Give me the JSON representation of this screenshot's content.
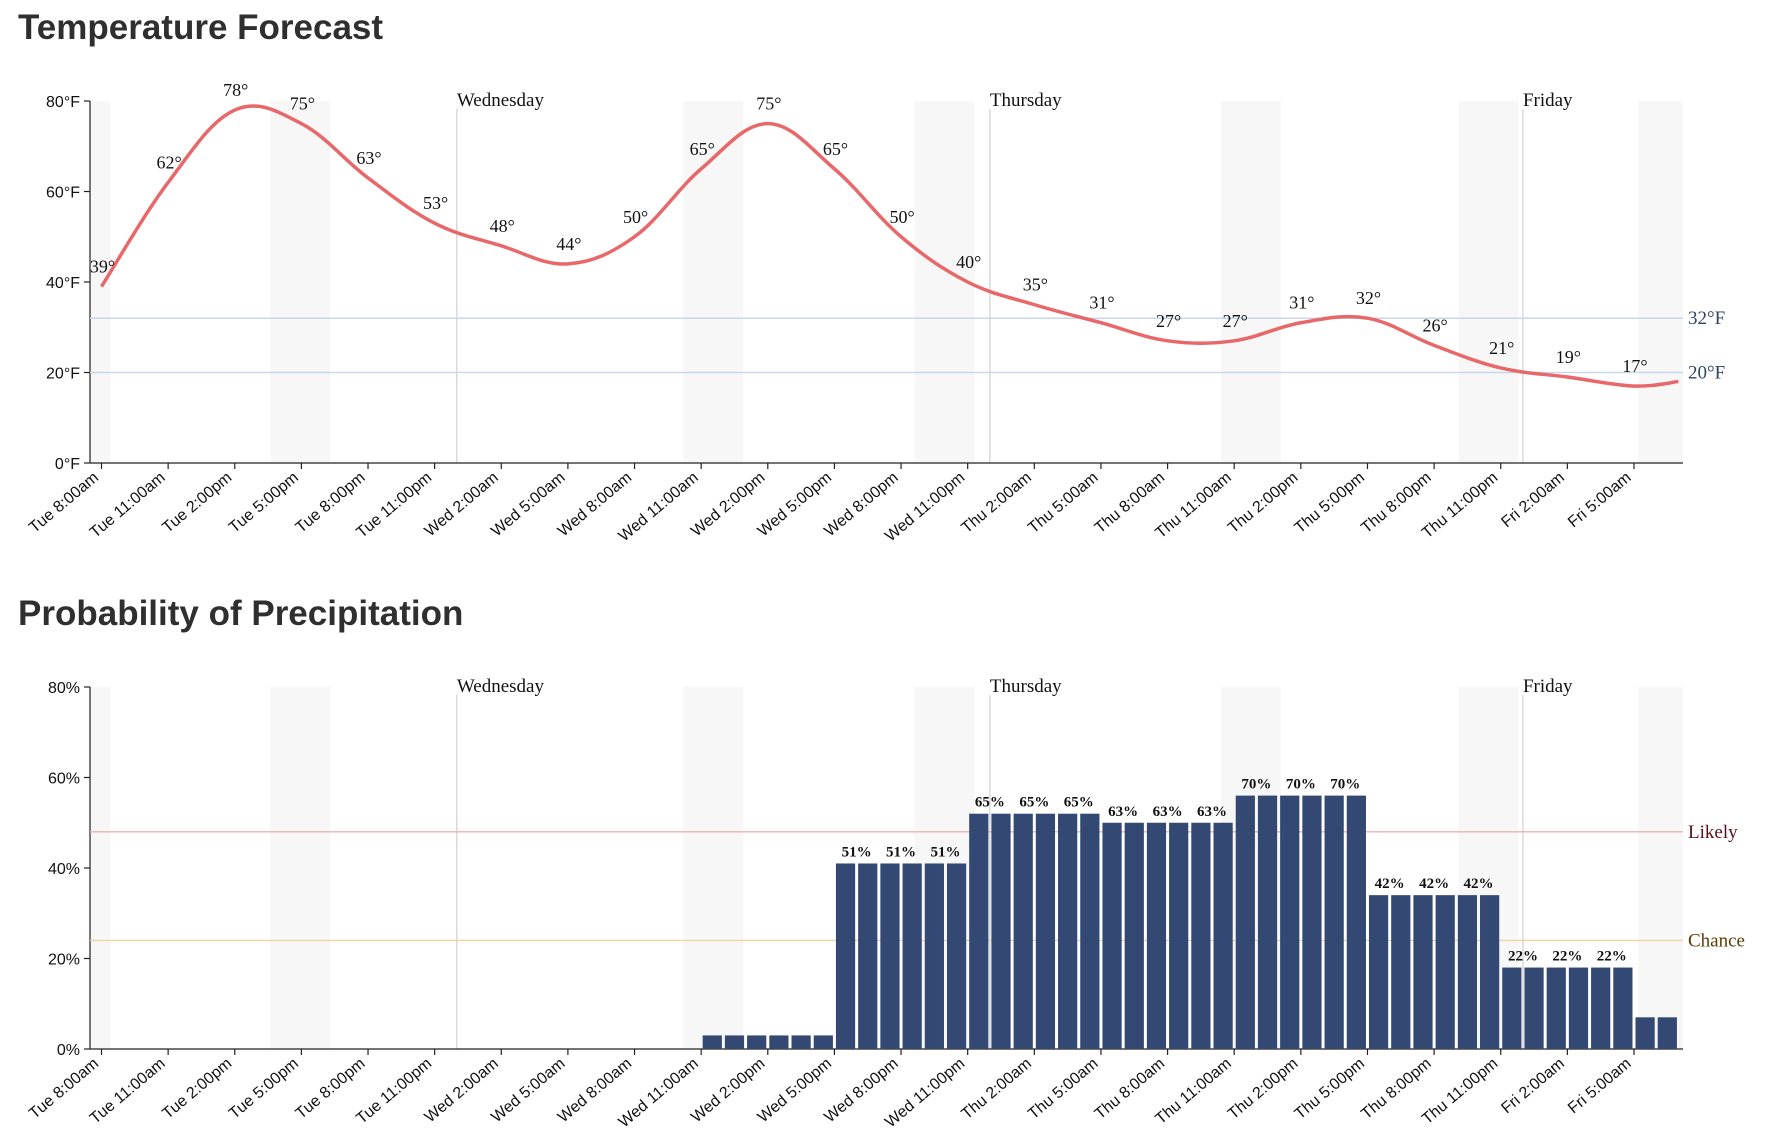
{
  "temperature_panel": {
    "title": "Temperature Forecast"
  },
  "precipitation_panel": {
    "title": "Probability of Precipitation"
  },
  "x_tick_labels": [
    "Tue 8:00am",
    "Tue 11:00am",
    "Tue 2:00pm",
    "Tue 5:00pm",
    "Tue 8:00pm",
    "Tue 11:00pm",
    "Wed 2:00am",
    "Wed 5:00am",
    "Wed 8:00am",
    "Wed 11:00am",
    "Wed 2:00pm",
    "Wed 5:00pm",
    "Wed 8:00pm",
    "Wed 11:00pm",
    "Thu 2:00am",
    "Thu 5:00am",
    "Thu 8:00am",
    "Thu 11:00am",
    "Thu 2:00pm",
    "Thu 5:00pm",
    "Thu 8:00pm",
    "Thu 11:00pm",
    "Fri 2:00am",
    "Fri 5:00am"
  ],
  "day_labels": [
    {
      "label": "Wednesday",
      "time": "Wed 12:00am"
    },
    {
      "label": "Thursday",
      "time": "Thu 12:00am"
    },
    {
      "label": "Friday",
      "time": "Fri 12:00am"
    }
  ],
  "colors": {
    "temperature_line": "#e8686a",
    "precip_bars": "#334872",
    "freezing_line": "#c9d7ea",
    "likely_line": "#f1b0b0",
    "chance_line": "#f2d29d",
    "likely_text": "#5a0f14",
    "chance_text": "#5a3b00",
    "ref_text": "#31445f",
    "night_band": "#f7f7f7",
    "day_divider": "#cfcfcf"
  },
  "chart_data": [
    {
      "type": "line",
      "title": "Temperature Forecast",
      "x_unit": "hours since Tue 8:00am",
      "ylim": [
        0,
        80
      ],
      "y_ticks": [
        "0°F",
        "20°F",
        "40°F",
        "60°F",
        "80°F"
      ],
      "reference_lines": [
        {
          "value": 32,
          "label": "32°F"
        },
        {
          "value": 20,
          "label": "20°F"
        }
      ],
      "series": [
        {
          "values": [
            {
              "x": "Tue 8:00am",
              "y": 39
            },
            {
              "x": "Tue 11:00am",
              "y": 62
            },
            {
              "x": "Tue 2:00pm",
              "y": 78
            },
            {
              "x": "Tue 5:00pm",
              "y": 75
            },
            {
              "x": "Tue 8:00pm",
              "y": 63
            },
            {
              "x": "Tue 11:00pm",
              "y": 53
            },
            {
              "x": "Wed 2:00am",
              "y": 48
            },
            {
              "x": "Wed 5:00am",
              "y": 44
            },
            {
              "x": "Wed 8:00am",
              "y": 50
            },
            {
              "x": "Wed 11:00am",
              "y": 65
            },
            {
              "x": "Wed 2:00pm",
              "y": 75
            },
            {
              "x": "Wed 5:00pm",
              "y": 65
            },
            {
              "x": "Wed 8:00pm",
              "y": 50
            },
            {
              "x": "Wed 11:00pm",
              "y": 40
            },
            {
              "x": "Thu 2:00am",
              "y": 35
            },
            {
              "x": "Thu 5:00am",
              "y": 31
            },
            {
              "x": "Thu 8:00am",
              "y": 27
            },
            {
              "x": "Thu 11:00am",
              "y": 27
            },
            {
              "x": "Thu 2:00pm",
              "y": 31
            },
            {
              "x": "Thu 5:00pm",
              "y": 32
            },
            {
              "x": "Thu 8:00pm",
              "y": 26
            },
            {
              "x": "Thu 11:00pm",
              "y": 21
            },
            {
              "x": "Fri 2:00am",
              "y": 19
            },
            {
              "x": "Fri 5:00am",
              "y": 17
            },
            {
              "x": "Fri 7:00am",
              "y": 18
            }
          ]
        }
      ],
      "point_labels": [
        "39°",
        "62°",
        "78°",
        "75°",
        "63°",
        "53°",
        "48°",
        "44°",
        "50°",
        "65°",
        "75°",
        "65°",
        "50°",
        "40°",
        "35°",
        "31°",
        "27°",
        "27°",
        "31°",
        "32°",
        "26°",
        "21°",
        "19°",
        "17°"
      ]
    },
    {
      "type": "bar",
      "title": "Probability of Precipitation",
      "ylim": [
        0,
        80
      ],
      "y_ticks": [
        "0%",
        "20%",
        "40%",
        "60%",
        "80%"
      ],
      "reference_lines": [
        {
          "value": 48,
          "label": "Likely"
        },
        {
          "value": 24,
          "label": "Chance"
        }
      ],
      "groups": [
        {
          "start": "Wed 11:00am",
          "end": "Wed 5:00pm",
          "value": 3,
          "label": ""
        },
        {
          "start": "Wed 5:00pm",
          "end": "Wed 11:00pm",
          "value": 41,
          "label": "51%"
        },
        {
          "start": "Wed 11:00pm",
          "end": "Thu 5:00am",
          "value": 52,
          "label": "65%"
        },
        {
          "start": "Thu 5:00am",
          "end": "Thu 11:00am",
          "value": 50,
          "label": "63%"
        },
        {
          "start": "Thu 11:00am",
          "end": "Thu 5:00pm",
          "value": 56,
          "label": "70%"
        },
        {
          "start": "Thu 5:00pm",
          "end": "Thu 11:00pm",
          "value": 34,
          "label": "42%"
        },
        {
          "start": "Thu 11:00pm",
          "end": "Fri 5:00am",
          "value": 18,
          "label": "22%"
        },
        {
          "start": "Fri 5:00am",
          "end": "Fri 7:00am",
          "value": 7,
          "label": ""
        }
      ]
    }
  ]
}
